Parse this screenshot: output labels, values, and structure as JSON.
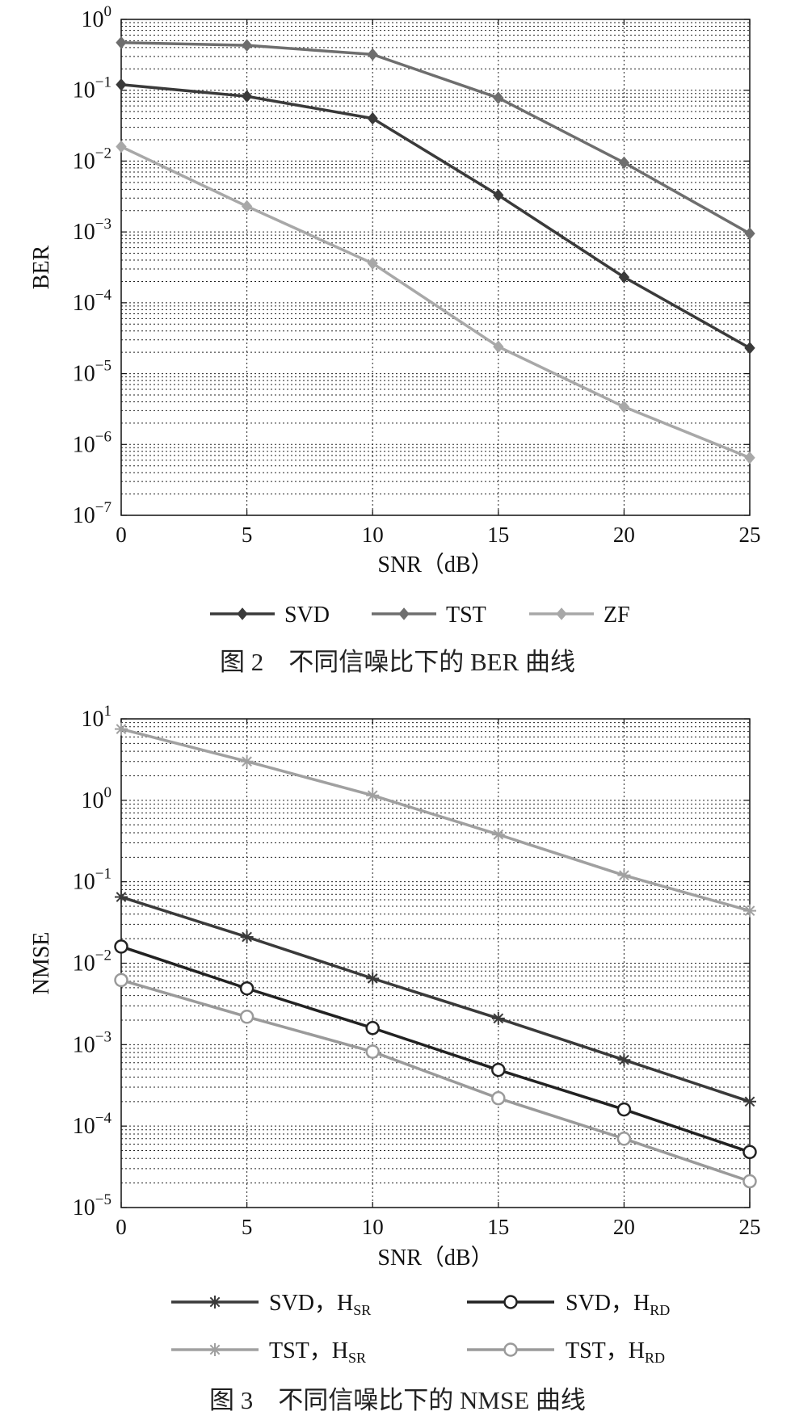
{
  "chart_data": [
    {
      "type": "line",
      "xlabel": "SNR（dB）",
      "ylabel": "BER",
      "x": [
        0,
        5,
        10,
        15,
        20,
        25
      ],
      "xticks": [
        "0",
        "5",
        "10",
        "15",
        "20",
        "25"
      ],
      "xlim": [
        0,
        25
      ],
      "yscale": "log",
      "ylim": [
        1e-07,
        1
      ],
      "yticks": [
        {
          "base": "10",
          "exp": "0"
        },
        {
          "base": "10",
          "exp": "−1"
        },
        {
          "base": "10",
          "exp": "−2"
        },
        {
          "base": "10",
          "exp": "−3"
        },
        {
          "base": "10",
          "exp": "−4"
        },
        {
          "base": "10",
          "exp": "−5"
        },
        {
          "base": "10",
          "exp": "−6"
        },
        {
          "base": "10",
          "exp": "−7"
        }
      ],
      "grid": true,
      "legend": "bottom, horizontal",
      "series": [
        {
          "name": "SVD",
          "values": [
            0.12,
            0.082,
            0.04,
            0.0033,
            0.00023,
            2.3e-05
          ],
          "color": "#3a3a3a",
          "marker": "diamond"
        },
        {
          "name": "TST",
          "values": [
            0.47,
            0.43,
            0.32,
            0.078,
            0.0095,
            0.00095
          ],
          "color": "#6e6e6e",
          "marker": "diamond"
        },
        {
          "name": "ZF",
          "values": [
            0.016,
            0.0023,
            0.00036,
            2.4e-05,
            3.4e-06,
            6.5e-07
          ],
          "color": "#a8a8a8",
          "marker": "diamond"
        }
      ],
      "caption": "图 2　不同信噪比下的 BER 曲线"
    },
    {
      "type": "line",
      "xlabel": "SNR（dB）",
      "ylabel": "NMSE",
      "x": [
        0,
        5,
        10,
        15,
        20,
        25
      ],
      "xticks": [
        "0",
        "5",
        "10",
        "15",
        "20",
        "25"
      ],
      "xlim": [
        0,
        25
      ],
      "yscale": "log",
      "ylim": [
        1e-05,
        10
      ],
      "yticks": [
        {
          "base": "10",
          "exp": "1"
        },
        {
          "base": "10",
          "exp": "0"
        },
        {
          "base": "10",
          "exp": "−1"
        },
        {
          "base": "10",
          "exp": "−2"
        },
        {
          "base": "10",
          "exp": "−3"
        },
        {
          "base": "10",
          "exp": "−4"
        },
        {
          "base": "10",
          "exp": "−5"
        }
      ],
      "grid": true,
      "legend": "bottom, two columns",
      "series": [
        {
          "name": "SVD，H",
          "sub": "SR",
          "values": [
            0.065,
            0.021,
            0.0065,
            0.0021,
            0.00065,
            0.0002
          ],
          "color": "#3a3a3a",
          "marker": "star"
        },
        {
          "name": "SVD，H",
          "sub": "RD",
          "values": [
            0.016,
            0.0049,
            0.0016,
            0.00049,
            0.00016,
            4.8e-05
          ],
          "color": "#222222",
          "marker": "circle"
        },
        {
          "name": "TST，H",
          "sub": "SR",
          "values": [
            7.5,
            3.0,
            1.15,
            0.38,
            0.12,
            0.044
          ],
          "color": "#a0a0a0",
          "marker": "star"
        },
        {
          "name": "TST，H",
          "sub": "RD",
          "values": [
            0.0062,
            0.0022,
            0.00082,
            0.00022,
            7e-05,
            2.1e-05
          ],
          "color": "#9a9a9a",
          "marker": "circle"
        }
      ],
      "caption": "图 3　不同信噪比下的 NMSE 曲线"
    }
  ]
}
